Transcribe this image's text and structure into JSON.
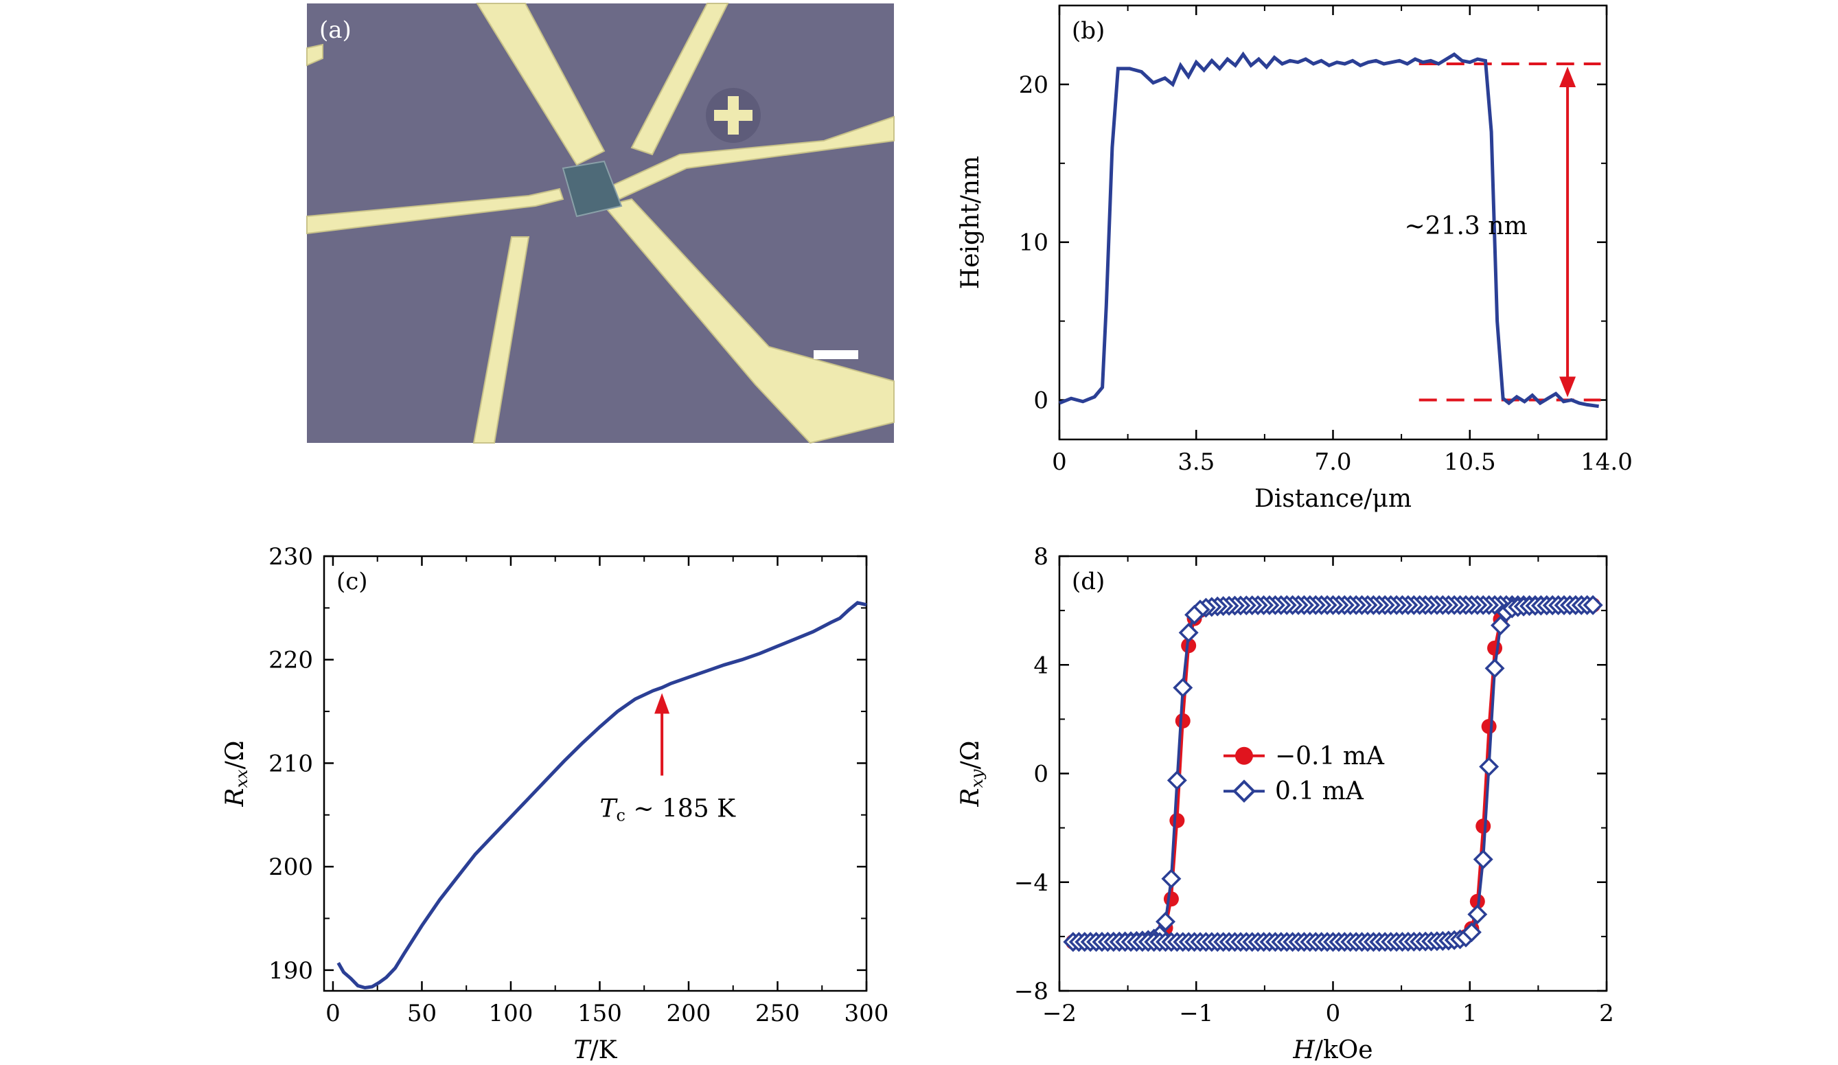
{
  "colors": {
    "blue": "#2b3f95",
    "red": "#e0141e",
    "axis": "#000000",
    "photo_bg": "#6c6a87",
    "electrode": "#efeab0"
  },
  "panels": {
    "a": {
      "label": "(a)",
      "icon": "optical-micrograph-image"
    },
    "b": {
      "label": "(b)",
      "annotation": "~21.3 nm"
    },
    "c": {
      "label": "(c)",
      "annotation_sym": "T",
      "annotation_sub": "c",
      "annotation_rest": " ~ 185 K"
    },
    "d": {
      "label": "(d)"
    }
  },
  "chart_data": [
    {
      "panel": "b",
      "type": "line",
      "xlabel": "Distance/μm",
      "ylabel": "Height/nm",
      "xlim": [
        0,
        14
      ],
      "ylim": [
        -2.5,
        25
      ],
      "xticks": [
        "0",
        "3.5",
        "7.0",
        "10.5",
        "14.0"
      ],
      "xtick_values": [
        0,
        3.5,
        7.0,
        10.5,
        14.0
      ],
      "yticks": [
        "0",
        "10",
        "20"
      ],
      "ytick_values": [
        0,
        10,
        20
      ],
      "series": [
        {
          "x": [
            0,
            0.3,
            0.6,
            0.9,
            1.1,
            1.2,
            1.35,
            1.5,
            1.8,
            2.1,
            2.4,
            2.7,
            2.9,
            3.1,
            3.3,
            3.5,
            3.7,
            3.9,
            4.1,
            4.3,
            4.5,
            4.7,
            4.9,
            5.1,
            5.3,
            5.5,
            5.7,
            5.9,
            6.1,
            6.3,
            6.5,
            6.7,
            6.9,
            7.1,
            7.3,
            7.5,
            7.7,
            7.9,
            8.1,
            8.3,
            8.5,
            8.7,
            8.9,
            9.1,
            9.3,
            9.5,
            9.7,
            9.9,
            10.1,
            10.3,
            10.5,
            10.7,
            10.9,
            11.05,
            11.2,
            11.35,
            11.5,
            11.7,
            11.9,
            12.1,
            12.3,
            12.5,
            12.7,
            12.9,
            13.1,
            13.3,
            13.5,
            13.8
          ],
          "y": [
            -0.2,
            0.1,
            -0.1,
            0.2,
            0.8,
            6,
            16,
            21,
            21.0,
            20.8,
            20.1,
            20.4,
            20.0,
            21.2,
            20.5,
            21.4,
            20.9,
            21.5,
            21.0,
            21.6,
            21.2,
            21.9,
            21.2,
            21.6,
            21.1,
            21.7,
            21.3,
            21.5,
            21.4,
            21.6,
            21.3,
            21.5,
            21.2,
            21.4,
            21.3,
            21.5,
            21.2,
            21.4,
            21.5,
            21.3,
            21.4,
            21.5,
            21.3,
            21.6,
            21.4,
            21.5,
            21.3,
            21.6,
            21.9,
            21.5,
            21.4,
            21.6,
            21.5,
            17,
            5,
            0.1,
            -0.2,
            0.2,
            -0.1,
            0.3,
            -0.2,
            0.1,
            0.4,
            -0.1,
            0.0,
            -0.2,
            -0.3,
            -0.4
          ]
        }
      ],
      "dashed_levels": [
        21.3,
        0
      ]
    },
    {
      "panel": "c",
      "type": "line",
      "xlabel_sym": "T",
      "xlabel_rest": "/K",
      "ylabel_sym": "R",
      "ylabel_sub": "xx",
      "ylabel_rest": "/Ω",
      "xlim": [
        -5,
        300
      ],
      "ylim": [
        188,
        230
      ],
      "xticks": [
        "0",
        "50",
        "100",
        "150",
        "200",
        "250",
        "300"
      ],
      "xtick_values": [
        0,
        50,
        100,
        150,
        200,
        250,
        300
      ],
      "yticks": [
        "190",
        "200",
        "210",
        "220",
        "230"
      ],
      "ytick_values": [
        190,
        200,
        210,
        220,
        230
      ],
      "series": [
        {
          "x": [
            3,
            6,
            10,
            14,
            18,
            22,
            26,
            30,
            35,
            40,
            50,
            60,
            70,
            80,
            90,
            100,
            110,
            120,
            130,
            140,
            150,
            160,
            170,
            180,
            185,
            190,
            200,
            210,
            220,
            230,
            240,
            250,
            260,
            270,
            280,
            285,
            290,
            295,
            300
          ],
          "y": [
            190.7,
            189.8,
            189.2,
            188.5,
            188.3,
            188.4,
            188.8,
            189.3,
            190.2,
            191.6,
            194.3,
            196.8,
            199.0,
            201.2,
            203.0,
            204.8,
            206.6,
            208.4,
            210.2,
            211.9,
            213.5,
            215.0,
            216.2,
            217.0,
            217.3,
            217.7,
            218.3,
            218.9,
            219.5,
            220.0,
            220.6,
            221.3,
            222.0,
            222.7,
            223.6,
            224.0,
            224.8,
            225.5,
            225.3
          ]
        }
      ],
      "arrow_at_x": 185
    },
    {
      "panel": "d",
      "type": "scatter",
      "xlabel_sym": "H",
      "xlabel_rest": "/kOe",
      "ylabel_sym": "R",
      "ylabel_sub": "xy",
      "ylabel_rest": "/Ω",
      "xlim": [
        -2,
        2
      ],
      "ylim": [
        -8,
        8
      ],
      "xticks": [
        "−2",
        "−1",
        "0",
        "1",
        "2"
      ],
      "xtick_values": [
        -2,
        -1,
        0,
        1,
        2
      ],
      "yticks": [
        "−8",
        "−4",
        "0",
        "4",
        "8"
      ],
      "ytick_values": [
        -8,
        -4,
        0,
        4,
        8
      ],
      "coercive_field": 1.12,
      "saturation": 6.2,
      "series": [
        {
          "name": "−0.1 mA",
          "marker": "circle",
          "color": "#e0141e",
          "offset": 0.0
        },
        {
          "name": "0.1 mA",
          "marker": "diamond",
          "color": "#2b3f95",
          "offset": 0.015
        }
      ]
    }
  ]
}
